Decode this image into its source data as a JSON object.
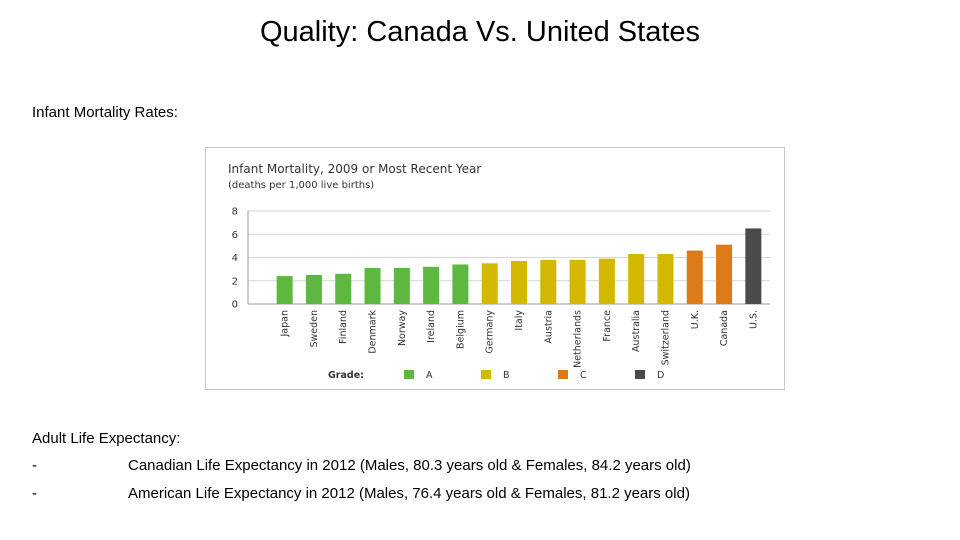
{
  "slide": {
    "title": "Quality: Canada Vs. United States",
    "infant_label": "Infant Mortality Rates:",
    "adult_label": "Adult Life Expectancy:",
    "bullets": [
      {
        "dash": "-",
        "text": "Canadian Life Expectancy in 2012 (Males, 80.3 years old & Females, 84.2 years old)"
      },
      {
        "dash": "-",
        "text": "American Life Expectancy in 2012 (Males, 76.4 years old & Females, 81.2 years old)"
      }
    ]
  },
  "chart_data": {
    "type": "bar",
    "title": "Infant Mortality, 2009 or Most Recent Year",
    "subtitle": "(deaths per 1,000 live births)",
    "ylim": [
      0,
      8
    ],
    "yticks": [
      0,
      2,
      4,
      6,
      8
    ],
    "grid": true,
    "categories": [
      "Japan",
      "Sweden",
      "Finland",
      "Denmark",
      "Norway",
      "Ireland",
      "Belgium",
      "Germany",
      "Italy",
      "Austria",
      "Netherlands",
      "France",
      "Australia",
      "Switzerland",
      "U.K.",
      "Canada",
      "U.S."
    ],
    "values": [
      2.4,
      2.5,
      2.6,
      3.1,
      3.1,
      3.2,
      3.4,
      3.5,
      3.7,
      3.8,
      3.8,
      3.9,
      4.3,
      4.3,
      4.6,
      5.1,
      6.5
    ],
    "grades": [
      "A",
      "A",
      "A",
      "A",
      "A",
      "A",
      "A",
      "B",
      "B",
      "B",
      "B",
      "B",
      "B",
      "B",
      "C",
      "C",
      "D"
    ],
    "legend": {
      "title": "Grade:",
      "placement": "bottom",
      "items": [
        {
          "label": "A",
          "color": "#5cb83f"
        },
        {
          "label": "B",
          "color": "#d4b800"
        },
        {
          "label": "C",
          "color": "#dd7a18"
        },
        {
          "label": "D",
          "color": "#4a4a4a"
        }
      ]
    }
  }
}
